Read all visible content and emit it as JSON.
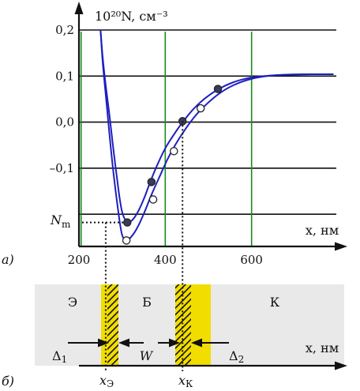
{
  "chart_data": {
    "type": "line",
    "ylabel": "10²⁰N, см⁻³",
    "xlabel": "x, нм",
    "xlim": [
      200,
      800
    ],
    "ylim": [
      -0.27,
      0.2
    ],
    "x_ticks": [
      {
        "value": 200,
        "label": "200"
      },
      {
        "value": 400,
        "label": "400"
      },
      {
        "value": 600,
        "label": "600"
      }
    ],
    "y_ticks": [
      {
        "value": 0.2,
        "label": "0,2"
      },
      {
        "value": 0.1,
        "label": "0,1"
      },
      {
        "value": 0.0,
        "label": "0,0"
      },
      {
        "value": -0.1,
        "label": "–0,1"
      },
      {
        "value": -0.2,
        "label": ""
      }
    ],
    "vertical_gridlines": [
      205,
      400,
      600
    ],
    "y_marker": {
      "label": "N",
      "subscript": "m",
      "value": -0.218
    },
    "series": [
      {
        "marker": "filled",
        "color": "#1f1fbf",
        "x": [
          250,
          255,
          262,
          270,
          280,
          292,
          300,
          310,
          322,
          336,
          352,
          366,
          382,
          400,
          420,
          442,
          466,
          494,
          524,
          556,
          590,
          630,
          680,
          740,
          790
        ],
        "y": [
          0.2,
          0.14,
          0.08,
          0.02,
          -0.06,
          -0.15,
          -0.195,
          -0.215,
          -0.214,
          -0.196,
          -0.163,
          -0.128,
          -0.092,
          -0.057,
          -0.027,
          0.002,
          0.029,
          0.053,
          0.072,
          0.086,
          0.095,
          0.1,
          0.103,
          0.104,
          0.104
        ],
        "points": [
          {
            "x": 312,
            "y": -0.218
          },
          {
            "x": 368,
            "y": -0.13
          },
          {
            "x": 440,
            "y": 0.002
          },
          {
            "x": 522,
            "y": 0.072
          }
        ]
      },
      {
        "marker": "open",
        "color": "#1f1fbf",
        "x": [
          250,
          255,
          262,
          270,
          280,
          292,
          300,
          310,
          322,
          336,
          352,
          368,
          386,
          404,
          424,
          446,
          470,
          498,
          528,
          560,
          596,
          636,
          686,
          740,
          790
        ],
        "y": [
          0.2,
          0.13,
          0.06,
          -0.02,
          -0.11,
          -0.2,
          -0.245,
          -0.257,
          -0.248,
          -0.228,
          -0.195,
          -0.158,
          -0.12,
          -0.083,
          -0.048,
          -0.016,
          0.014,
          0.041,
          0.064,
          0.081,
          0.093,
          0.1,
          0.103,
          0.104,
          0.104
        ],
        "points": [
          {
            "x": 310,
            "y": -0.257
          },
          {
            "x": 372,
            "y": -0.168
          },
          {
            "x": 420,
            "y": -0.063
          },
          {
            "x": 482,
            "y": 0.03
          }
        ]
      }
    ],
    "dotted_guides": [
      {
        "x": 262,
        "y": -0.218
      },
      {
        "x": 330,
        "y": -0.218
      },
      {
        "x": 440,
        "y": 0.002
      }
    ]
  },
  "panel_labels": {
    "a": "а)",
    "b": "б)"
  },
  "diagram": {
    "region_labels": [
      "Э",
      "Б",
      "К"
    ],
    "delta1": {
      "symbol": "Δ",
      "sub": "1"
    },
    "delta2": {
      "symbol": "Δ",
      "sub": "2"
    },
    "w_label": "W",
    "axis_label": "x, нм",
    "xe": {
      "symbol": "x",
      "sub": "Э"
    },
    "xk": {
      "symbol": "x",
      "sub": "К"
    }
  }
}
